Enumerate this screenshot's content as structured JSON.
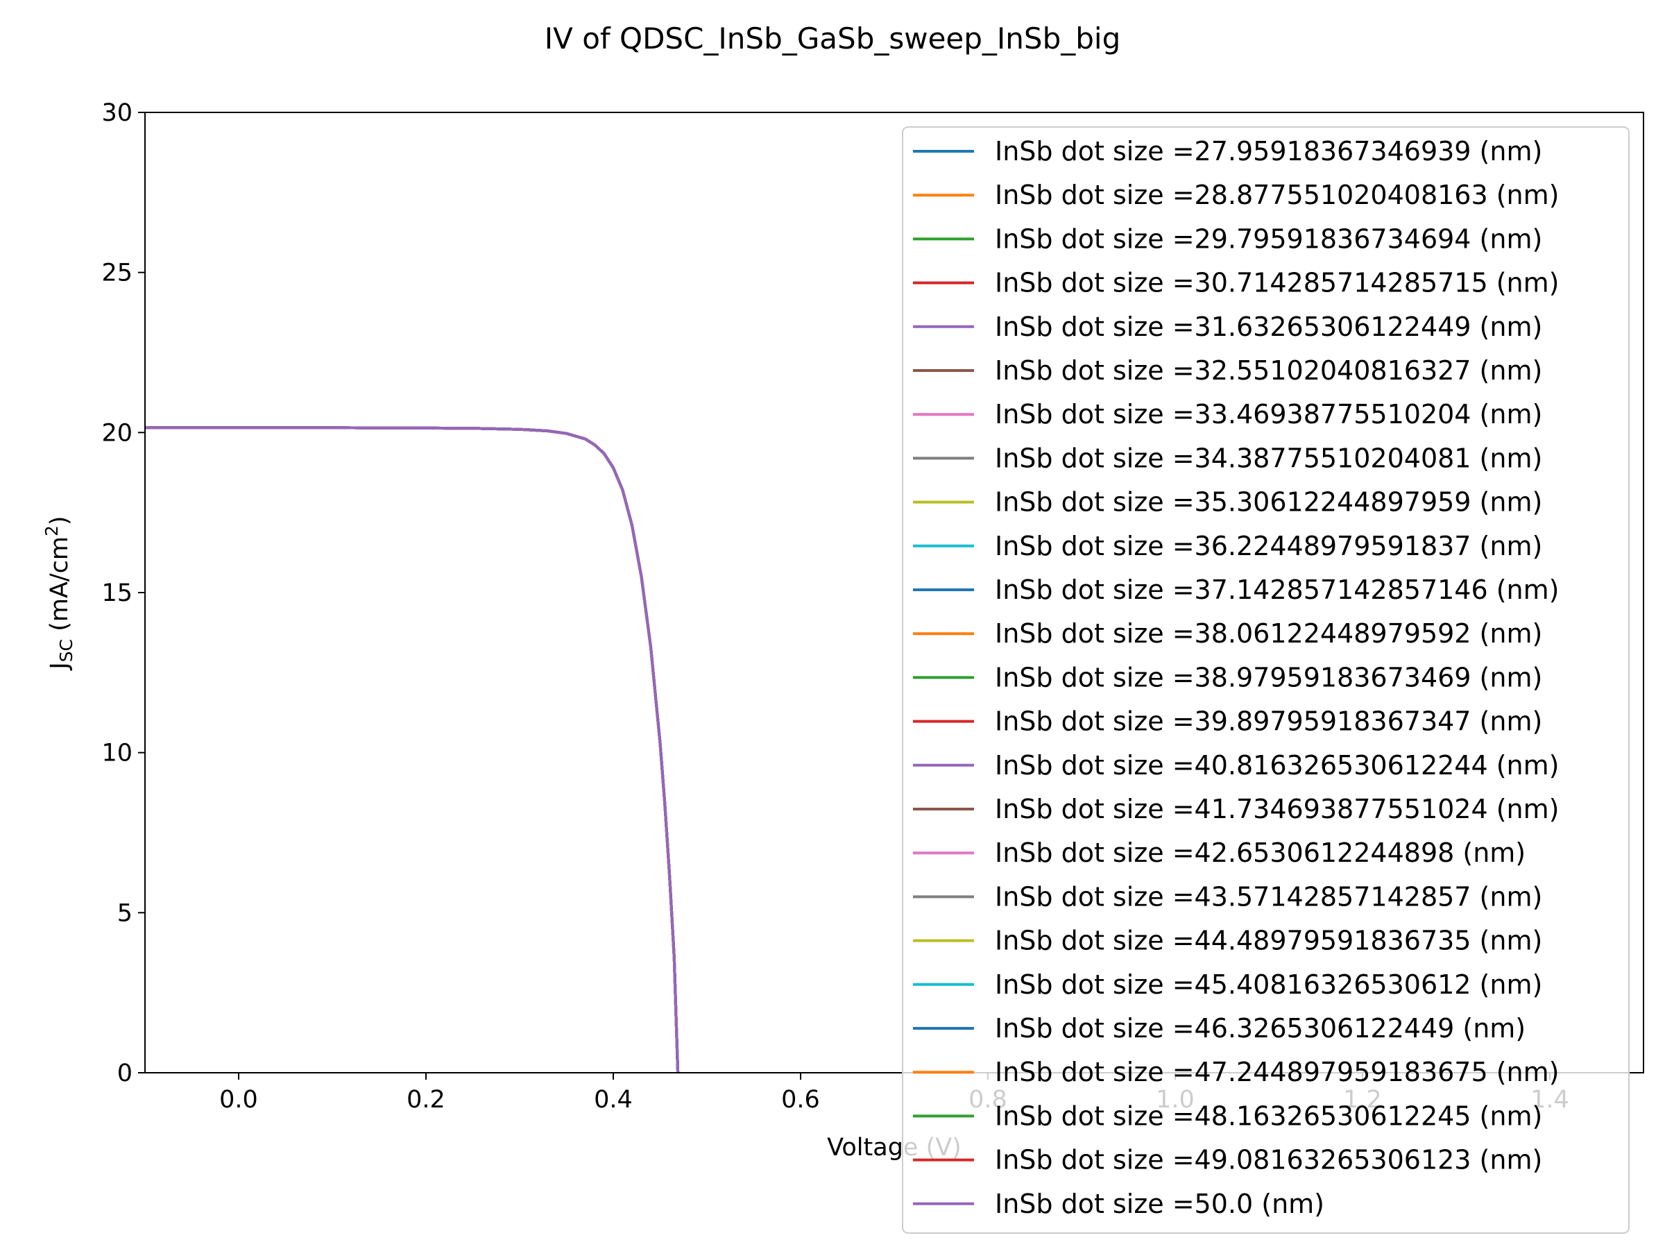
{
  "chart_data": {
    "type": "line",
    "title": "IV of QDSC_InSb_GaSb_sweep_InSb_big",
    "xlabel": "Voltage (V)",
    "ylabel_main": "J",
    "ylabel_sub": "SC",
    "ylabel_unit": " (mA/cm",
    "ylabel_sup": "2",
    "ylabel_close": ")",
    "xlim": [
      -0.1,
      1.5
    ],
    "ylim": [
      0,
      30
    ],
    "x_ticks": [
      "0.0",
      "0.2",
      "0.4",
      "0.6",
      "0.8",
      "1.0",
      "1.2",
      "1.4"
    ],
    "y_ticks": [
      "0",
      "5",
      "10",
      "15",
      "20",
      "25",
      "30"
    ],
    "grid": false,
    "legend_position": "right",
    "x": [
      -0.1,
      0.0,
      0.1,
      0.2,
      0.25,
      0.3,
      0.33,
      0.35,
      0.37,
      0.38,
      0.39,
      0.4,
      0.41,
      0.42,
      0.43,
      0.44,
      0.45,
      0.455,
      0.46,
      0.465,
      0.469
    ],
    "y": [
      20.15,
      20.15,
      20.15,
      20.14,
      20.13,
      20.1,
      20.05,
      19.97,
      19.8,
      19.62,
      19.35,
      18.9,
      18.2,
      17.1,
      15.5,
      13.3,
      10.3,
      8.4,
      6.2,
      3.6,
      0.0
    ],
    "series": [
      {
        "name": "InSb dot size =27.95918367346939 (nm)",
        "color": "#1f77b4"
      },
      {
        "name": "InSb dot size =28.877551020408163 (nm)",
        "color": "#ff7f0e"
      },
      {
        "name": "InSb dot size =29.79591836734694 (nm)",
        "color": "#2ca02c"
      },
      {
        "name": "InSb dot size =30.714285714285715 (nm)",
        "color": "#d62728"
      },
      {
        "name": "InSb dot size =31.63265306122449 (nm)",
        "color": "#9467bd"
      },
      {
        "name": "InSb dot size =32.55102040816327 (nm)",
        "color": "#8c564b"
      },
      {
        "name": "InSb dot size =33.46938775510204 (nm)",
        "color": "#e377c2"
      },
      {
        "name": "InSb dot size =34.38775510204081 (nm)",
        "color": "#7f7f7f"
      },
      {
        "name": "InSb dot size =35.30612244897959 (nm)",
        "color": "#bcbd22"
      },
      {
        "name": "InSb dot size =36.22448979591837 (nm)",
        "color": "#17becf"
      },
      {
        "name": "InSb dot size =37.142857142857146 (nm)",
        "color": "#1f77b4"
      },
      {
        "name": "InSb dot size =38.06122448979592 (nm)",
        "color": "#ff7f0e"
      },
      {
        "name": "InSb dot size =38.97959183673469 (nm)",
        "color": "#2ca02c"
      },
      {
        "name": "InSb dot size =39.89795918367347 (nm)",
        "color": "#d62728"
      },
      {
        "name": "InSb dot size =40.816326530612244 (nm)",
        "color": "#9467bd"
      },
      {
        "name": "InSb dot size =41.734693877551024 (nm)",
        "color": "#8c564b"
      },
      {
        "name": "InSb dot size =42.6530612244898 (nm)",
        "color": "#e377c2"
      },
      {
        "name": "InSb dot size =43.57142857142857 (nm)",
        "color": "#7f7f7f"
      },
      {
        "name": "InSb dot size =44.48979591836735 (nm)",
        "color": "#bcbd22"
      },
      {
        "name": "InSb dot size =45.40816326530612 (nm)",
        "color": "#17becf"
      },
      {
        "name": "InSb dot size =46.3265306122449 (nm)",
        "color": "#1f77b4"
      },
      {
        "name": "InSb dot size =47.244897959183675 (nm)",
        "color": "#ff7f0e"
      },
      {
        "name": "InSb dot size =48.16326530612245 (nm)",
        "color": "#2ca02c"
      },
      {
        "name": "InSb dot size =49.08163265306123 (nm)",
        "color": "#d62728"
      },
      {
        "name": "InSb dot size =50.0 (nm)",
        "color": "#9467bd"
      }
    ]
  }
}
